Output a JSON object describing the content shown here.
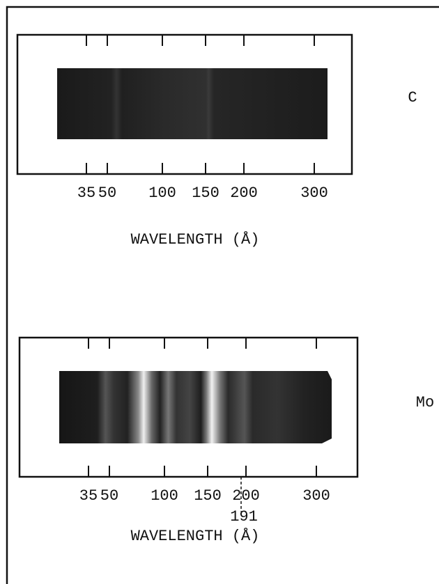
{
  "panels": [
    {
      "label": "C",
      "ticks": [
        "35",
        "50",
        "100",
        "150",
        "200",
        "300"
      ],
      "axis_label": "WAVELENGTH (Å)"
    },
    {
      "label": "Mo",
      "ticks": [
        "35",
        "50",
        "100",
        "150",
        "200",
        "300"
      ],
      "marker": "191",
      "axis_label": "WAVELENGTH (Å)"
    }
  ]
}
